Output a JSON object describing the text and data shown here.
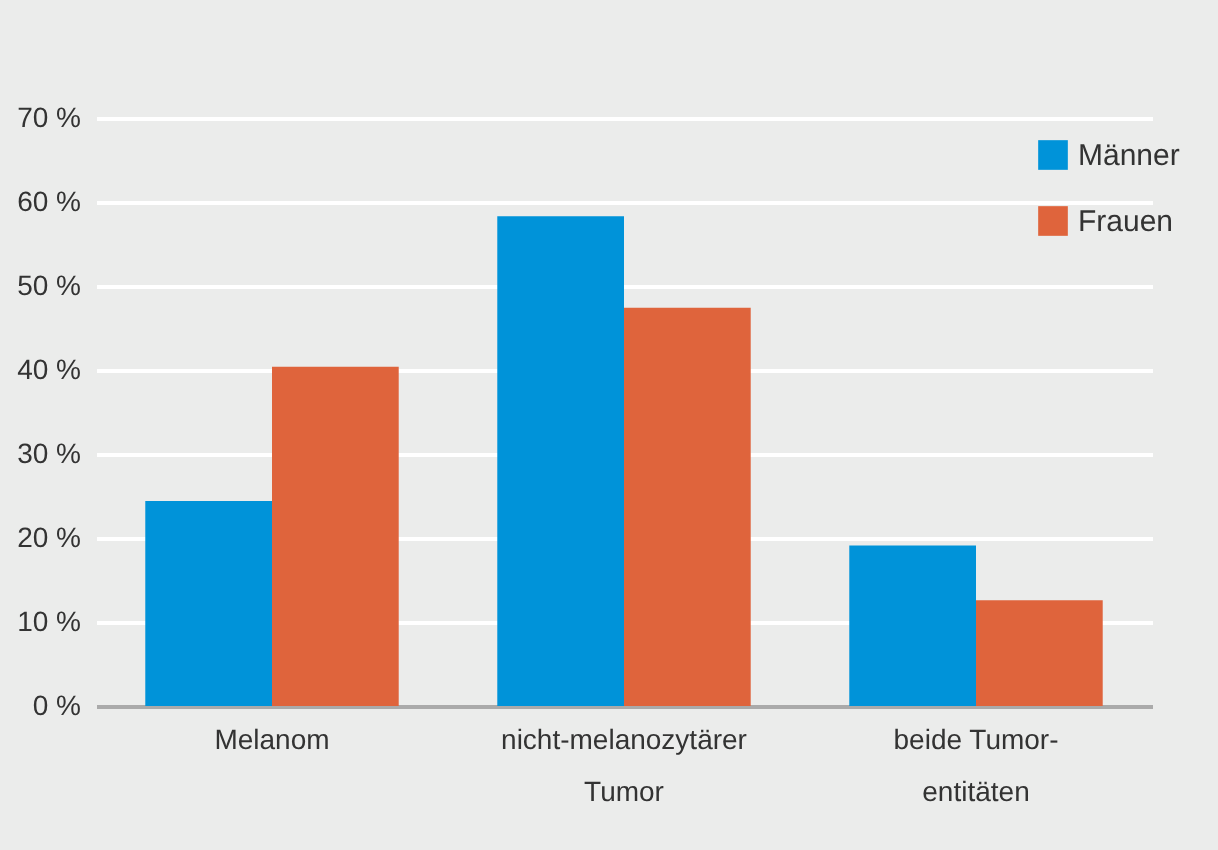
{
  "chart_data": {
    "type": "bar",
    "categories": [
      "Melanom",
      "nicht-melanozytärer Tumor",
      "beide Tumor-entitäten"
    ],
    "series": [
      {
        "name": "Männer",
        "color": "#0093d9",
        "values": [
          24.4,
          58.3,
          19.1
        ]
      },
      {
        "name": "Frauen",
        "color": "#df643c",
        "values": [
          40.4,
          47.4,
          12.6
        ]
      }
    ],
    "ylim": [
      0,
      70
    ],
    "yticks": [
      {
        "value": 0,
        "label": "0 %"
      },
      {
        "value": 10,
        "label": "10 %"
      },
      {
        "value": 20,
        "label": "20 %"
      },
      {
        "value": 30,
        "label": "30 %"
      },
      {
        "value": 40,
        "label": "40 %"
      },
      {
        "value": 50,
        "label": "50 %"
      },
      {
        "value": 60,
        "label": "60 %"
      },
      {
        "value": 70,
        "label": "70 %"
      }
    ],
    "grid": "y",
    "legend": "top right"
  }
}
